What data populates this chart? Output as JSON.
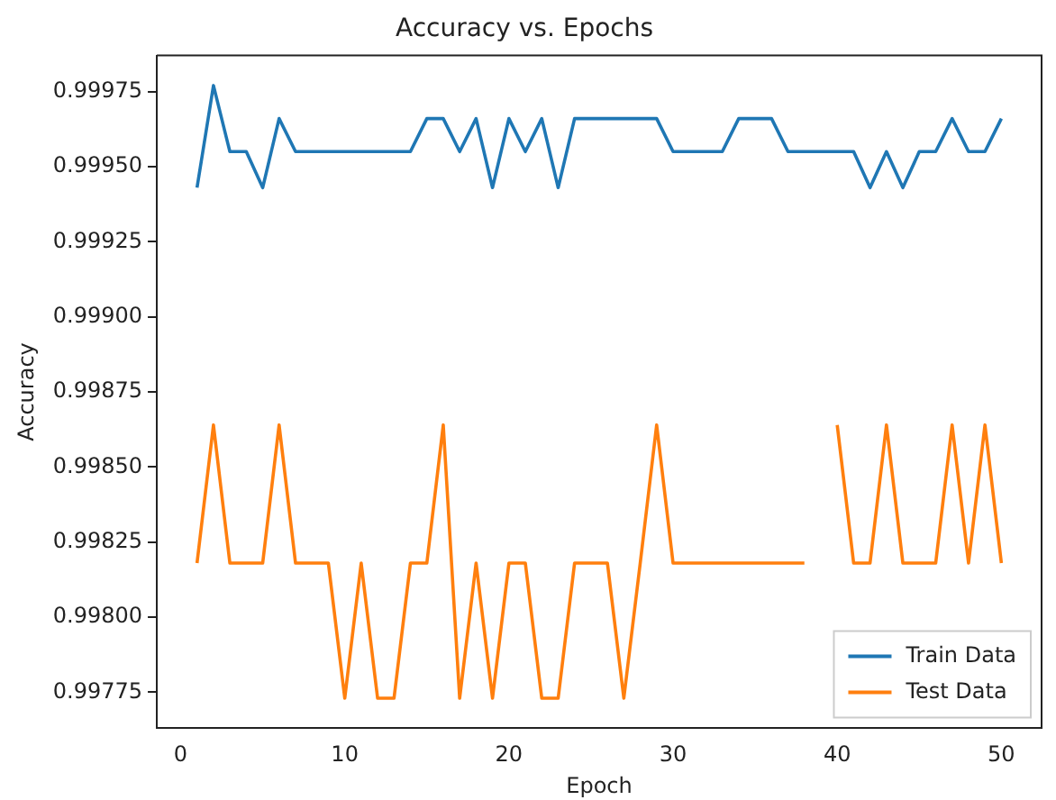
{
  "chart_data": {
    "type": "line",
    "title": "Accuracy vs. Epochs",
    "xlabel": "Epoch",
    "ylabel": "Accuracy",
    "x": [
      1,
      2,
      3,
      4,
      5,
      6,
      7,
      8,
      9,
      10,
      11,
      12,
      13,
      14,
      15,
      16,
      17,
      18,
      19,
      20,
      21,
      22,
      23,
      24,
      25,
      26,
      27,
      28,
      29,
      30,
      31,
      32,
      33,
      34,
      35,
      36,
      37,
      38,
      39,
      40,
      41,
      42,
      43,
      44,
      45,
      46,
      47,
      48,
      49,
      50
    ],
    "series": [
      {
        "name": "Train Data",
        "color": "#1f77b4",
        "values": [
          0.99943,
          0.99977,
          0.99955,
          0.99955,
          0.99943,
          0.99966,
          0.99955,
          0.99955,
          0.99955,
          0.99955,
          0.99955,
          0.99955,
          0.99955,
          0.99955,
          0.99966,
          0.99966,
          0.99955,
          0.99966,
          0.99943,
          0.99966,
          0.99955,
          0.99966,
          0.99943,
          0.99966,
          0.99966,
          0.99966,
          0.99966,
          0.99966,
          0.99966,
          0.99955,
          0.99955,
          0.99955,
          0.99955,
          0.99966,
          0.99966,
          0.99966,
          0.99955,
          0.99955,
          0.99955,
          0.99955,
          0.99955,
          0.99943,
          0.99955,
          0.99943,
          0.99955,
          0.99955,
          0.99966,
          0.99955,
          0.99955,
          0.99966
        ]
      },
      {
        "name": "Test Data",
        "color": "#ff7f0e",
        "values": [
          0.99818,
          0.99864,
          0.99818,
          0.99818,
          0.99818,
          0.99864,
          0.99818,
          0.99818,
          0.99818,
          0.99773,
          0.99818,
          0.99773,
          0.99773,
          0.99818,
          0.99818,
          0.99864,
          0.99773,
          0.99818,
          0.99773,
          0.99818,
          0.99818,
          0.99773,
          0.99773,
          0.99818,
          0.99818,
          0.99818,
          0.99773,
          0.99818,
          0.99864,
          0.99818,
          0.99818,
          0.99818,
          0.99818,
          0.99818,
          0.99818,
          0.99818,
          0.99818,
          0.99818,
          null,
          0.99864,
          0.99818,
          0.99818,
          0.99864,
          0.99818,
          0.99818,
          0.99818,
          0.99864,
          0.99818,
          0.99864,
          0.99818
        ]
      }
    ],
    "xlim": [
      -1.45,
      52.45
    ],
    "xticks": [
      0,
      10,
      20,
      30,
      40,
      50
    ],
    "ylim": [
      0.99763,
      0.99987
    ],
    "yticks": [
      0.99775,
      {
        "value": 0.998,
        "label": "0.99800"
      },
      0.99825,
      {
        "value": 0.9985,
        "label": "0.99850"
      },
      0.99875,
      {
        "value": 0.999,
        "label": "0.99900"
      },
      0.99925,
      {
        "value": 0.9995,
        "label": "0.99950"
      },
      0.99975
    ],
    "grid": false,
    "legend": "bottom right",
    "marker": "none",
    "line_style": "solid"
  }
}
